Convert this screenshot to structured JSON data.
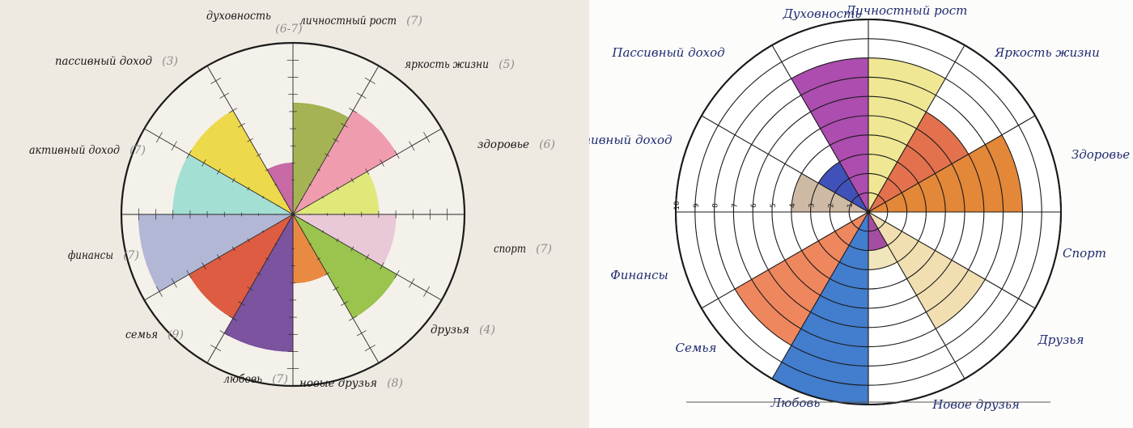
{
  "chart_data": [
    {
      "type": "polar-area",
      "rlim": [
        0,
        10
      ],
      "segments": [
        {
          "label": "духовность",
          "score": "(6-7)",
          "value": 6.5,
          "color": "#9aaa3f"
        },
        {
          "label": "личностный рост",
          "score": "(7)",
          "value": 7,
          "color": "#ef8fa6"
        },
        {
          "label": "яркость жизни",
          "score": "(5)",
          "value": 5,
          "color": "#dde66a"
        },
        {
          "label": "здоровье",
          "score": "(6)",
          "value": 6,
          "color": "#e7c2d4"
        },
        {
          "label": "спорт",
          "score": "(7)",
          "value": 7,
          "color": "#8dbd37"
        },
        {
          "label": "друзья",
          "score": "(4)",
          "value": 4,
          "color": "#e77b2b"
        },
        {
          "label": "новые друзья",
          "score": "(8)",
          "value": 8,
          "color": "#6a3c94"
        },
        {
          "label": "любовь",
          "score": "(7)",
          "value": 7,
          "color": "#d9472a"
        },
        {
          "label": "семья",
          "score": "(9)",
          "value": 9,
          "color": "#a9aed1"
        },
        {
          "label": "финансы",
          "score": "(7)",
          "value": 7,
          "color": "#99dcd0"
        },
        {
          "label": "активный доход",
          "score": "(7)",
          "value": 7,
          "color": "#ecd535"
        },
        {
          "label": "пассивный доход",
          "score": "(3)",
          "value": 3,
          "color": "#c2569c"
        }
      ]
    },
    {
      "type": "polar-area",
      "rlim": [
        0,
        10
      ],
      "segments": [
        {
          "label": "Личностный рост",
          "value": 8,
          "color": "#eee48a"
        },
        {
          "label": "Яркость жизни",
          "value": 6,
          "color": "#e0623a"
        },
        {
          "label": "Здоровье",
          "value": 8,
          "color": "#e07a22"
        },
        {
          "label": "Спорт",
          "value": 0,
          "color": "#eadba8"
        },
        {
          "label": "Друзья",
          "value": 7,
          "color": "#efdcaa"
        },
        {
          "label": "Новые друзья",
          "value": 3,
          "color": "#f0e2b4"
        },
        {
          "label": "Любовь",
          "value": 10,
          "color": "#2d6fc9"
        },
        {
          "label": "Семья",
          "value": 8,
          "color": "#ec7a4c"
        },
        {
          "label": "Финансы",
          "value": 0,
          "color": "#d8c8b0"
        },
        {
          "label": "Активный доход",
          "value": 0,
          "color": "#c9a98c"
        },
        {
          "label": "Пассивный доход",
          "value": 3,
          "color": "#2b3fb3"
        },
        {
          "label": "Духовность",
          "value": 8,
          "color": "#a33aa6"
        }
      ],
      "extra_wedges": [
        {
          "label": "Финансы",
          "value": 4,
          "color": "#c9b39a"
        },
        {
          "label": "Новые друзья",
          "value": 2,
          "color": "#9b3da0"
        }
      ],
      "labels": [
        "Духовность",
        "Личностный рост",
        "Яркость жизни",
        "Здоровье",
        "Спорт",
        "Друзья",
        "Новое друзья",
        "Любовь",
        "Семья",
        "Финансы",
        "Активный доход",
        "Пассивный доход"
      ],
      "tick_labels": [
        "1",
        "2",
        "3",
        "4",
        "5",
        "6",
        "7",
        "8",
        "9",
        "10"
      ]
    }
  ]
}
